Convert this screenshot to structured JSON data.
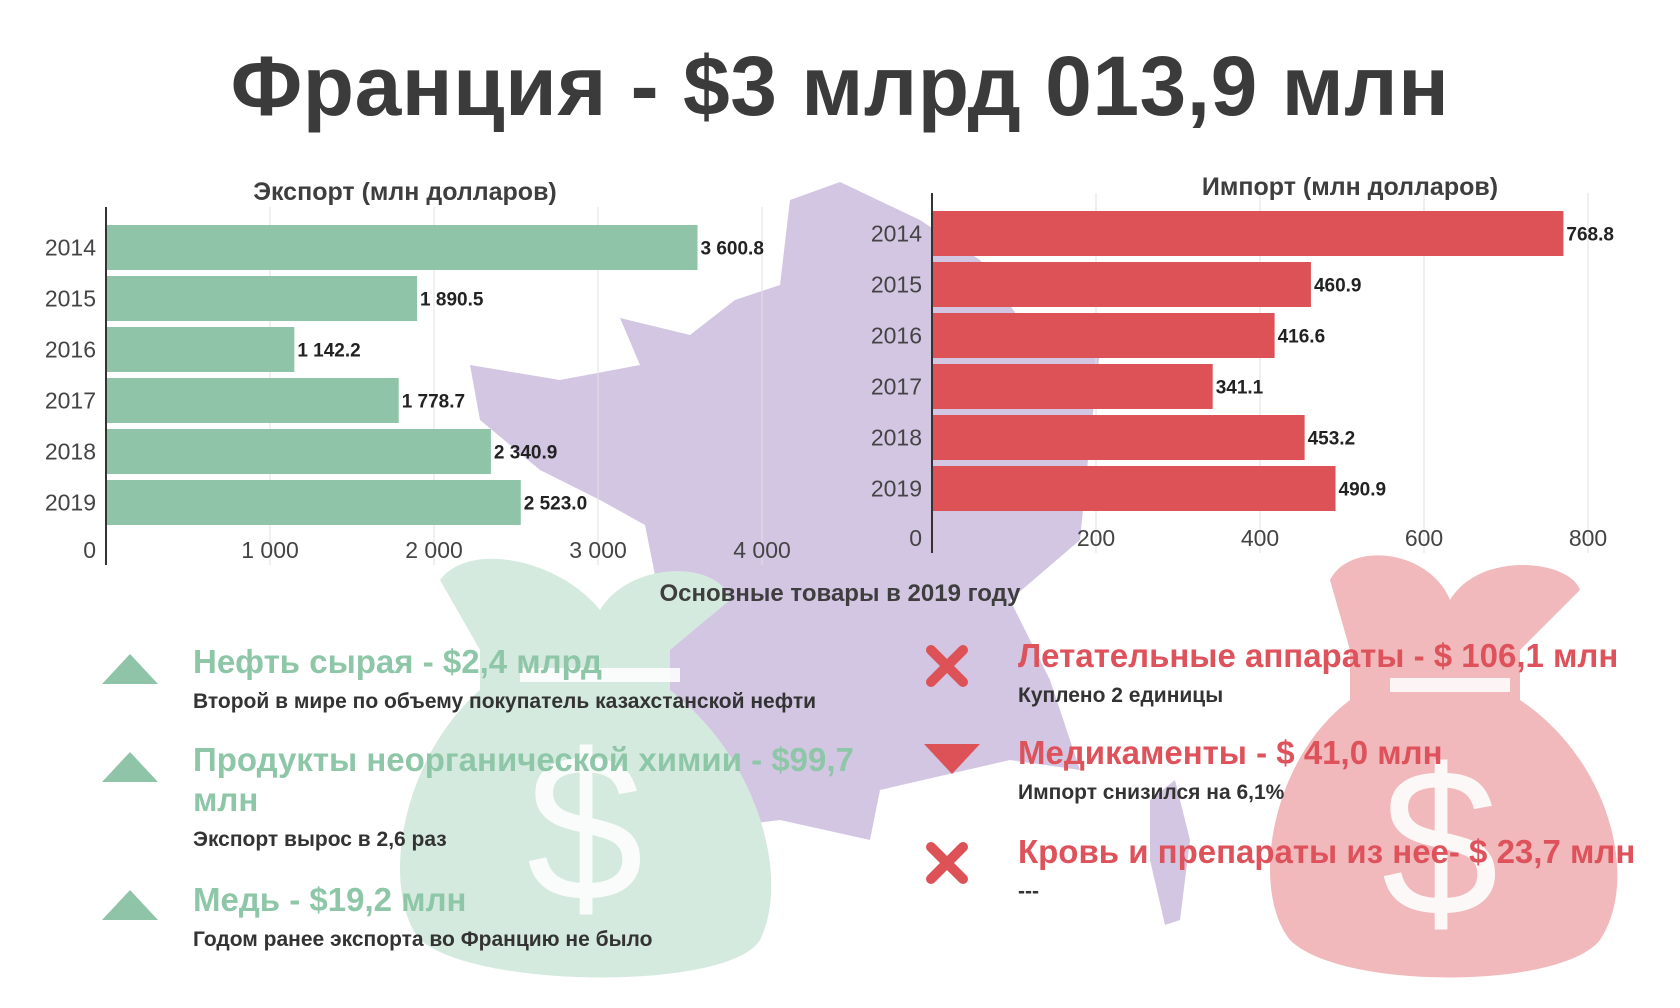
{
  "title": "Франция - $3 млрд 013,9 млн",
  "colors": {
    "export": "#8fc4a8",
    "import": "#dc5257",
    "map": "#d3c6e3",
    "bag_green": "#d5eadf",
    "bag_red": "#f1b9bb"
  },
  "chart_data": [
    {
      "type": "bar",
      "orientation": "horizontal",
      "title": "Экспорт (млн долларов)",
      "categories": [
        "2014",
        "2015",
        "2016",
        "2017",
        "2018",
        "2019"
      ],
      "values": [
        3600.8,
        1890.5,
        1142.2,
        1778.7,
        2340.9,
        2523.0
      ],
      "value_labels": [
        "3 600.8",
        "1 890.5",
        "1 142.2",
        "1 778.7",
        "2 340.9",
        "2 523.0"
      ],
      "ticks": [
        0,
        1000,
        2000,
        3000,
        4000
      ],
      "tick_labels": [
        "0",
        "1 000",
        "2 000",
        "3 000",
        "4 000"
      ],
      "xlim": [
        0,
        4000
      ],
      "grid": true
    },
    {
      "type": "bar",
      "orientation": "horizontal",
      "title": "Импорт (млн долларов)",
      "categories": [
        "2014",
        "2015",
        "2016",
        "2017",
        "2018",
        "2019"
      ],
      "values": [
        768.8,
        460.9,
        416.6,
        341.1,
        453.2,
        490.9
      ],
      "value_labels": [
        "768.8",
        "460.9",
        "416.6",
        "341.1",
        "453.2",
        "490.9"
      ],
      "ticks": [
        0,
        200,
        400,
        600,
        800
      ],
      "tick_labels": [
        "0",
        "200",
        "400",
        "600",
        "800"
      ],
      "xlim": [
        0,
        800
      ],
      "grid": true
    }
  ],
  "goods": {
    "section_title": "Основные товары в 2019 году",
    "export": [
      {
        "icon": "triangle-up-icon",
        "title": "Нефть сырая - $2,4 млрд",
        "note": "Второй в мире по объему покупатель казахстанской нефти"
      },
      {
        "icon": "triangle-up-icon",
        "title": "Продукты неорганической химии - $99,7 млн",
        "note": "Экспорт вырос в 2,6 раз"
      },
      {
        "icon": "triangle-up-icon",
        "title": "Медь - $19,2 млн",
        "note": "Годом ранее экспорта во Францию не было"
      }
    ],
    "import": [
      {
        "icon": "cross-icon",
        "title": "Летательные аппараты - $ 106,1 млн",
        "note": "Куплено 2 единицы"
      },
      {
        "icon": "triangle-down-icon",
        "title": "Медикаменты - $ 41,0 млн",
        "note": "Импорт снизился на 6,1%"
      },
      {
        "icon": "cross-icon",
        "title": "Кровь и препараты из нее- $ 23,7 млн",
        "note": "---"
      }
    ]
  }
}
